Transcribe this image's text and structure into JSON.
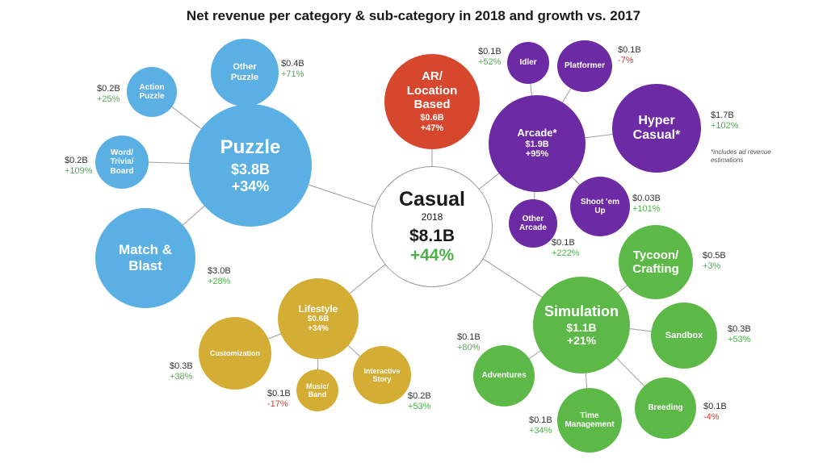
{
  "title": "Net revenue per category & sub-category in 2018 and growth vs. 2017",
  "center": {
    "name": "Casual",
    "year": "2018",
    "value": "$8.1B",
    "growth": "+44%"
  },
  "puzzle": {
    "name": "Puzzle",
    "value": "$3.8B",
    "growth": "+34%",
    "other_puzzle": {
      "name_1": "Other",
      "name_2": "Puzzle",
      "value": "$0.4B",
      "growth": "+71%"
    },
    "action_puzzle": {
      "name_1": "Action",
      "name_2": "Puzzle",
      "value": "$0.2B",
      "growth": "+25%"
    },
    "word": {
      "name_1": "Word/",
      "name_2": "Trivia/",
      "name_3": "Board",
      "value": "$0.2B",
      "growth": "+109%"
    },
    "match": {
      "name_1": "Match &",
      "name_2": "Blast",
      "value": "$3.0B",
      "growth": "+28%"
    }
  },
  "ar": {
    "name_1": "AR/",
    "name_2": "Location",
    "name_3": "Based",
    "value": "$0.6B",
    "growth": "+47%"
  },
  "arcade": {
    "name": "Arcade*",
    "value": "$1.9B",
    "growth": "+95%",
    "idler": {
      "name": "Idler",
      "value": "$0.1B",
      "growth": "+52%"
    },
    "platformer": {
      "name": "Platformer",
      "value": "$0.1B",
      "growth": "-7%"
    },
    "shoot": {
      "name_1": "Shoot 'em",
      "name_2": "Up",
      "value": "$0.03B",
      "growth": "+101%"
    },
    "other_arcade": {
      "name_1": "Other",
      "name_2": "Arcade",
      "value": "$0.1B",
      "growth": "+222%"
    }
  },
  "hyper": {
    "name_1": "Hyper",
    "name_2": "Casual*",
    "value": "$1.7B",
    "growth": "+102%",
    "note_1": "*includes ad revenue",
    "note_2": "estimations"
  },
  "lifestyle": {
    "name": "Lifestyle",
    "value": "$0.6B",
    "growth": "+34%",
    "customization": {
      "name": "Customization",
      "value": "$0.3B",
      "growth": "+38%"
    },
    "music": {
      "name_1": "Music/",
      "name_2": "Band",
      "value": "$0.1B",
      "growth": "-17%"
    },
    "interactive": {
      "name_1": "Interactive",
      "name_2": "Story",
      "value": "$0.2B",
      "growth": "+53%"
    }
  },
  "simulation": {
    "name": "Simulation",
    "value": "$1.1B",
    "growth": "+21%",
    "tycoon": {
      "name_1": "Tycoon/",
      "name_2": "Crafting",
      "value": "$0.5B",
      "growth": "+3%"
    },
    "sandbox": {
      "name": "Sandbox",
      "value": "$0.3B",
      "growth": "+53%"
    },
    "breeding": {
      "name": "Breeding",
      "value": "$0.1B",
      "growth": "-4%"
    },
    "time": {
      "name_1": "Time",
      "name_2": "Management",
      "value": "$0.1B",
      "growth": "+34%"
    },
    "adventures": {
      "name": "Adventures",
      "value": "$0.1B",
      "growth": "+80%"
    }
  },
  "colors": {
    "puzzle": "#5aafe3",
    "arcade": "#6d2aa5",
    "ar": "#d6472d",
    "lifestyle": "#d4ad35",
    "simulation": "#5cb947",
    "positive": "#4db14a",
    "negative": "#d43a2b"
  }
}
